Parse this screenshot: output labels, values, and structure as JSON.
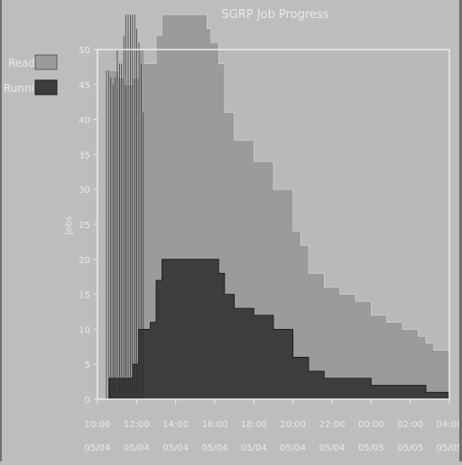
{
  "chart_data": {
    "type": "area",
    "title": "SGRP Job Progress",
    "ylabel": "Jobs",
    "xlabel": "",
    "ylim": [
      0,
      50
    ],
    "yticks": [
      0,
      5,
      10,
      15,
      20,
      25,
      30,
      35,
      40,
      45,
      50
    ],
    "xtick_labels": [
      {
        "time": "10:00",
        "date": "05/04"
      },
      {
        "time": "12:00",
        "date": "05/04"
      },
      {
        "time": "14:00",
        "date": "05/04"
      },
      {
        "time": "16:00",
        "date": "05/04"
      },
      {
        "time": "18:00",
        "date": "05/04"
      },
      {
        "time": "20:00",
        "date": "05/04"
      },
      {
        "time": "22:00",
        "date": "05/04"
      },
      {
        "time": "00:00",
        "date": "05/05"
      },
      {
        "time": "02:00",
        "date": "05/05"
      },
      {
        "time": "04:00",
        "date": "05/05"
      }
    ],
    "x_hours": [
      0.6,
      0.7,
      1.1,
      1.4,
      1.8,
      2.1,
      2.4,
      2.7,
      3.0,
      3.3,
      3.6,
      4.2,
      4.8,
      5.3,
      5.6,
      5.8,
      6.2,
      6.5,
      7.0,
      7.5,
      8.0,
      8.5,
      9.0,
      9.5,
      10.0,
      10.4,
      10.8,
      11.2,
      11.6,
      12.0,
      12.4,
      12.8,
      13.2,
      13.6,
      14.0,
      14.4,
      14.8,
      15.2,
      15.6,
      16.0,
      16.4,
      16.8,
      17.2,
      17.6,
      18.0
    ],
    "legend": {
      "position": "top-left"
    },
    "grid": false,
    "series": [
      {
        "name": "Ready",
        "color": "#9b9b9b",
        "values": [
          3,
          3,
          3,
          3,
          5,
          10,
          10,
          11,
          17,
          20,
          20,
          20,
          20,
          20,
          20,
          20,
          18,
          15,
          13,
          13,
          12,
          12,
          10,
          10,
          6,
          6,
          4,
          4,
          3,
          3,
          3,
          3,
          3,
          3,
          2,
          2,
          2,
          2,
          2,
          2,
          2,
          1,
          1,
          1,
          1
        ]
      },
      {
        "name": "Running",
        "color": "#3d3d3d",
        "values": [
          44,
          44,
          43,
          42,
          41,
          40,
          38,
          37,
          35,
          35,
          35,
          35,
          35,
          35,
          33,
          31,
          30,
          26,
          24,
          24,
          22,
          22,
          20,
          20,
          18,
          16,
          14,
          14,
          13,
          13,
          12,
          12,
          11,
          11,
          10,
          10,
          9,
          9,
          8,
          8,
          7,
          7,
          6,
          6,
          6
        ]
      }
    ],
    "colors": {
      "background": "#bdbdbd",
      "plot_background": "#b9b9b9",
      "axis": "#ededed",
      "text": "#e9e9e9"
    }
  }
}
